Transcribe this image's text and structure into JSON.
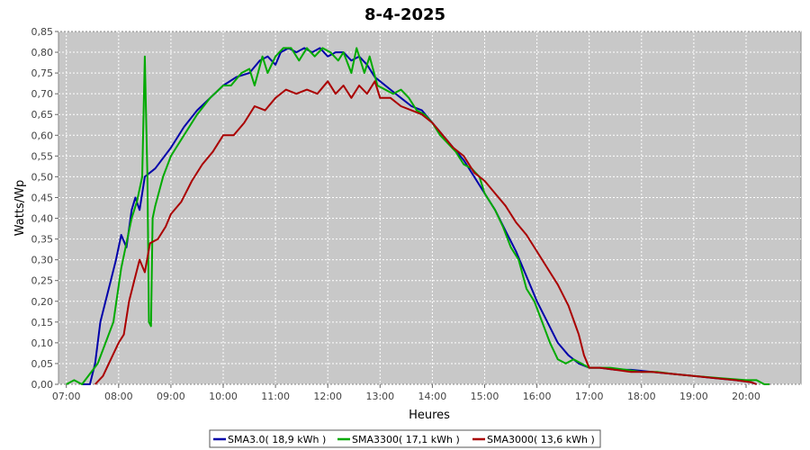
{
  "chart_data": {
    "type": "line",
    "title": "8-4-2025",
    "xlabel": "Heures",
    "ylabel": "Watts/Wp",
    "xlim": [
      6.85,
      21.05
    ],
    "ylim": [
      0,
      0.85
    ],
    "grid": true,
    "legend_position": "bottom-center",
    "x_ticks": [
      {
        "value": 7,
        "label": "07:00"
      },
      {
        "value": 8,
        "label": "08:00"
      },
      {
        "value": 9,
        "label": "09:00"
      },
      {
        "value": 10,
        "label": "10:00"
      },
      {
        "value": 11,
        "label": "11:00"
      },
      {
        "value": 12,
        "label": "12:00"
      },
      {
        "value": 13,
        "label": "13:00"
      },
      {
        "value": 14,
        "label": "14:00"
      },
      {
        "value": 15,
        "label": "15:00"
      },
      {
        "value": 16,
        "label": "16:00"
      },
      {
        "value": 17,
        "label": "17:00"
      },
      {
        "value": 18,
        "label": "18:00"
      },
      {
        "value": 19,
        "label": "19:00"
      },
      {
        "value": 20,
        "label": "20:00"
      }
    ],
    "y_ticks": [
      {
        "value": 0.0,
        "label": "0,00"
      },
      {
        "value": 0.05,
        "label": "0,05"
      },
      {
        "value": 0.1,
        "label": "0,10"
      },
      {
        "value": 0.15,
        "label": "0,15"
      },
      {
        "value": 0.2,
        "label": "0,20"
      },
      {
        "value": 0.25,
        "label": "0,25"
      },
      {
        "value": 0.3,
        "label": "0,30"
      },
      {
        "value": 0.35,
        "label": "0,35"
      },
      {
        "value": 0.4,
        "label": "0,40"
      },
      {
        "value": 0.45,
        "label": "0,45"
      },
      {
        "value": 0.5,
        "label": "0,50"
      },
      {
        "value": 0.55,
        "label": "0,55"
      },
      {
        "value": 0.6,
        "label": "0,60"
      },
      {
        "value": 0.65,
        "label": "0,65"
      },
      {
        "value": 0.7,
        "label": "0,70"
      },
      {
        "value": 0.75,
        "label": "0,75"
      },
      {
        "value": 0.8,
        "label": "0,80"
      },
      {
        "value": 0.85,
        "label": "0,85"
      }
    ],
    "series": [
      {
        "name": "SMA3.0( 18,9 kWh )",
        "color": "#0000aa",
        "points": [
          [
            7.3,
            0.0
          ],
          [
            7.45,
            0.0
          ],
          [
            7.55,
            0.05
          ],
          [
            7.65,
            0.15
          ],
          [
            7.75,
            0.2
          ],
          [
            7.85,
            0.25
          ],
          [
            7.95,
            0.3
          ],
          [
            8.05,
            0.36
          ],
          [
            8.15,
            0.33
          ],
          [
            8.25,
            0.42
          ],
          [
            8.32,
            0.45
          ],
          [
            8.4,
            0.42
          ],
          [
            8.5,
            0.5
          ],
          [
            8.7,
            0.52
          ],
          [
            9.0,
            0.57
          ],
          [
            9.25,
            0.62
          ],
          [
            9.5,
            0.66
          ],
          [
            9.75,
            0.69
          ],
          [
            10.0,
            0.72
          ],
          [
            10.25,
            0.74
          ],
          [
            10.5,
            0.75
          ],
          [
            10.7,
            0.78
          ],
          [
            10.85,
            0.79
          ],
          [
            11.0,
            0.77
          ],
          [
            11.1,
            0.8
          ],
          [
            11.25,
            0.81
          ],
          [
            11.4,
            0.8
          ],
          [
            11.55,
            0.81
          ],
          [
            11.7,
            0.8
          ],
          [
            11.85,
            0.81
          ],
          [
            12.0,
            0.79
          ],
          [
            12.15,
            0.8
          ],
          [
            12.3,
            0.8
          ],
          [
            12.45,
            0.78
          ],
          [
            12.6,
            0.79
          ],
          [
            12.75,
            0.77
          ],
          [
            12.9,
            0.74
          ],
          [
            13.0,
            0.73
          ],
          [
            13.2,
            0.71
          ],
          [
            13.4,
            0.69
          ],
          [
            13.6,
            0.67
          ],
          [
            13.8,
            0.66
          ],
          [
            14.0,
            0.63
          ],
          [
            14.2,
            0.6
          ],
          [
            14.4,
            0.57
          ],
          [
            14.6,
            0.54
          ],
          [
            14.8,
            0.5
          ],
          [
            15.0,
            0.46
          ],
          [
            15.2,
            0.42
          ],
          [
            15.4,
            0.37
          ],
          [
            15.6,
            0.32
          ],
          [
            15.8,
            0.26
          ],
          [
            16.0,
            0.2
          ],
          [
            16.2,
            0.15
          ],
          [
            16.4,
            0.1
          ],
          [
            16.6,
            0.07
          ],
          [
            16.8,
            0.05
          ],
          [
            17.0,
            0.04
          ],
          [
            17.2,
            0.04
          ],
          [
            17.5,
            0.035
          ],
          [
            17.8,
            0.035
          ],
          [
            18.2,
            0.03
          ],
          [
            18.6,
            0.025
          ],
          [
            19.0,
            0.02
          ],
          [
            19.4,
            0.015
          ],
          [
            19.8,
            0.01
          ],
          [
            20.1,
            0.005
          ],
          [
            20.2,
            0.0
          ]
        ]
      },
      {
        "name": "SMA3300( 17,1 kWh )",
        "color": "#00aa00",
        "points": [
          [
            7.0,
            0.0
          ],
          [
            7.15,
            0.01
          ],
          [
            7.3,
            0.0
          ],
          [
            7.6,
            0.05
          ],
          [
            7.75,
            0.1
          ],
          [
            7.9,
            0.15
          ],
          [
            8.05,
            0.28
          ],
          [
            8.15,
            0.34
          ],
          [
            8.25,
            0.4
          ],
          [
            8.35,
            0.44
          ],
          [
            8.45,
            0.5
          ],
          [
            8.5,
            0.79
          ],
          [
            8.55,
            0.5
          ],
          [
            8.58,
            0.15
          ],
          [
            8.62,
            0.14
          ],
          [
            8.65,
            0.4
          ],
          [
            8.7,
            0.43
          ],
          [
            8.85,
            0.5
          ],
          [
            9.0,
            0.55
          ],
          [
            9.1,
            0.57
          ],
          [
            9.25,
            0.6
          ],
          [
            9.5,
            0.65
          ],
          [
            9.75,
            0.69
          ],
          [
            10.0,
            0.72
          ],
          [
            10.15,
            0.72
          ],
          [
            10.35,
            0.75
          ],
          [
            10.5,
            0.76
          ],
          [
            10.6,
            0.72
          ],
          [
            10.75,
            0.79
          ],
          [
            10.85,
            0.75
          ],
          [
            11.0,
            0.79
          ],
          [
            11.15,
            0.81
          ],
          [
            11.3,
            0.81
          ],
          [
            11.45,
            0.78
          ],
          [
            11.6,
            0.81
          ],
          [
            11.75,
            0.79
          ],
          [
            11.9,
            0.81
          ],
          [
            12.05,
            0.8
          ],
          [
            12.2,
            0.78
          ],
          [
            12.3,
            0.8
          ],
          [
            12.45,
            0.75
          ],
          [
            12.55,
            0.81
          ],
          [
            12.7,
            0.75
          ],
          [
            12.8,
            0.79
          ],
          [
            12.95,
            0.72
          ],
          [
            13.1,
            0.71
          ],
          [
            13.25,
            0.7
          ],
          [
            13.4,
            0.71
          ],
          [
            13.55,
            0.69
          ],
          [
            13.7,
            0.66
          ],
          [
            13.85,
            0.65
          ],
          [
            14.0,
            0.63
          ],
          [
            14.15,
            0.6
          ],
          [
            14.3,
            0.58
          ],
          [
            14.45,
            0.56
          ],
          [
            14.6,
            0.53
          ],
          [
            14.75,
            0.52
          ],
          [
            14.9,
            0.5
          ],
          [
            15.0,
            0.46
          ],
          [
            15.2,
            0.42
          ],
          [
            15.35,
            0.38
          ],
          [
            15.5,
            0.33
          ],
          [
            15.65,
            0.3
          ],
          [
            15.8,
            0.23
          ],
          [
            15.95,
            0.2
          ],
          [
            16.1,
            0.15
          ],
          [
            16.25,
            0.1
          ],
          [
            16.4,
            0.06
          ],
          [
            16.55,
            0.05
          ],
          [
            16.7,
            0.06
          ],
          [
            16.85,
            0.05
          ],
          [
            17.0,
            0.04
          ],
          [
            17.2,
            0.04
          ],
          [
            17.4,
            0.04
          ],
          [
            17.7,
            0.035
          ],
          [
            18.0,
            0.03
          ],
          [
            18.3,
            0.03
          ],
          [
            18.6,
            0.025
          ],
          [
            19.0,
            0.02
          ],
          [
            19.5,
            0.015
          ],
          [
            20.0,
            0.01
          ],
          [
            20.2,
            0.01
          ],
          [
            20.35,
            0.0
          ],
          [
            20.45,
            0.0
          ]
        ]
      },
      {
        "name": "SMA3000( 13,6 kWh )",
        "color": "#aa0000",
        "points": [
          [
            7.55,
            0.0
          ],
          [
            7.7,
            0.02
          ],
          [
            7.85,
            0.06
          ],
          [
            8.0,
            0.1
          ],
          [
            8.1,
            0.12
          ],
          [
            8.2,
            0.2
          ],
          [
            8.3,
            0.25
          ],
          [
            8.4,
            0.3
          ],
          [
            8.5,
            0.27
          ],
          [
            8.6,
            0.34
          ],
          [
            8.75,
            0.35
          ],
          [
            8.9,
            0.38
          ],
          [
            9.0,
            0.41
          ],
          [
            9.2,
            0.44
          ],
          [
            9.4,
            0.49
          ],
          [
            9.6,
            0.53
          ],
          [
            9.8,
            0.56
          ],
          [
            10.0,
            0.6
          ],
          [
            10.2,
            0.6
          ],
          [
            10.4,
            0.63
          ],
          [
            10.6,
            0.67
          ],
          [
            10.8,
            0.66
          ],
          [
            11.0,
            0.69
          ],
          [
            11.2,
            0.71
          ],
          [
            11.4,
            0.7
          ],
          [
            11.6,
            0.71
          ],
          [
            11.8,
            0.7
          ],
          [
            12.0,
            0.73
          ],
          [
            12.15,
            0.7
          ],
          [
            12.3,
            0.72
          ],
          [
            12.45,
            0.69
          ],
          [
            12.6,
            0.72
          ],
          [
            12.75,
            0.7
          ],
          [
            12.9,
            0.73
          ],
          [
            13.0,
            0.69
          ],
          [
            13.2,
            0.69
          ],
          [
            13.4,
            0.67
          ],
          [
            13.6,
            0.66
          ],
          [
            13.8,
            0.65
          ],
          [
            14.0,
            0.63
          ],
          [
            14.2,
            0.6
          ],
          [
            14.4,
            0.57
          ],
          [
            14.6,
            0.55
          ],
          [
            14.8,
            0.51
          ],
          [
            15.0,
            0.49
          ],
          [
            15.2,
            0.46
          ],
          [
            15.4,
            0.43
          ],
          [
            15.6,
            0.39
          ],
          [
            15.8,
            0.36
          ],
          [
            16.0,
            0.32
          ],
          [
            16.2,
            0.28
          ],
          [
            16.4,
            0.24
          ],
          [
            16.6,
            0.19
          ],
          [
            16.8,
            0.12
          ],
          [
            16.9,
            0.07
          ],
          [
            17.0,
            0.04
          ],
          [
            17.2,
            0.04
          ],
          [
            17.5,
            0.035
          ],
          [
            17.8,
            0.03
          ],
          [
            18.2,
            0.03
          ],
          [
            18.6,
            0.025
          ],
          [
            19.0,
            0.02
          ],
          [
            19.4,
            0.015
          ],
          [
            19.8,
            0.01
          ],
          [
            20.1,
            0.005
          ],
          [
            20.2,
            0.0
          ]
        ]
      }
    ]
  }
}
